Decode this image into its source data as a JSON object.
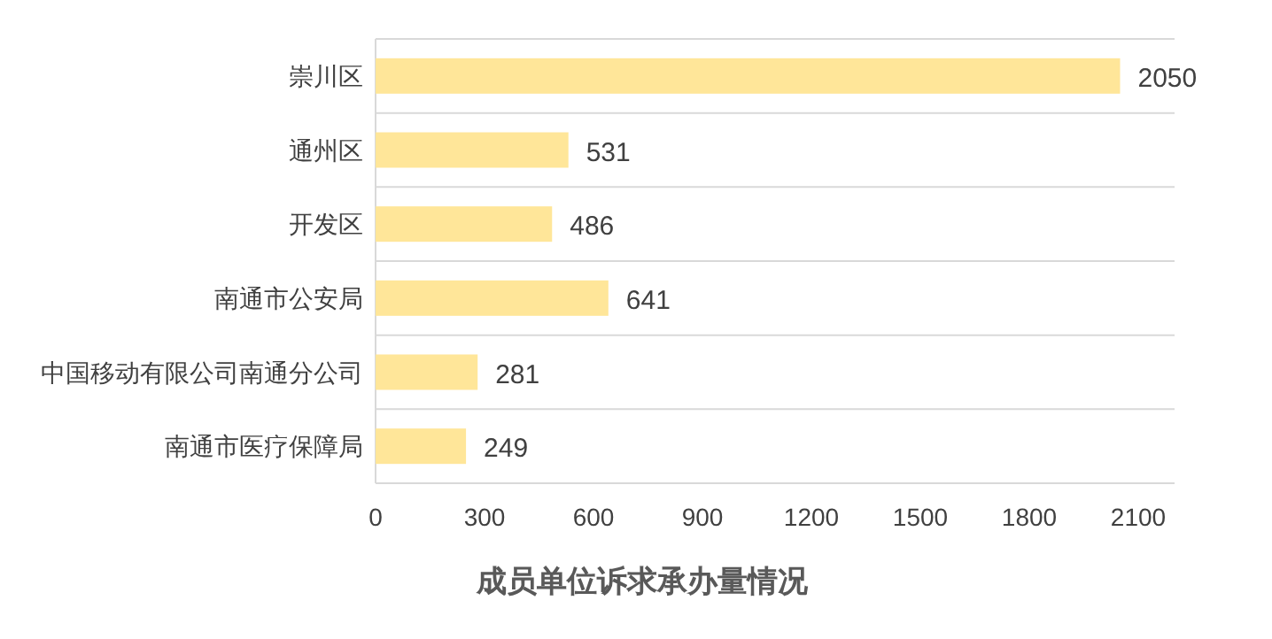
{
  "chart_data": {
    "type": "bar",
    "orientation": "horizontal",
    "title": "成员单位诉求承办量情况",
    "categories": [
      "崇川区",
      "通州区",
      "开发区",
      "南通市公安局",
      "中国移动有限公司南通分公司",
      "南通市医疗保障局"
    ],
    "values": [
      2050,
      531,
      486,
      641,
      281,
      249
    ],
    "color": "#ffe699",
    "data_labels": true,
    "xlim": [
      0,
      2200
    ],
    "xticks": [
      0,
      300,
      600,
      900,
      1200,
      1500,
      1800,
      2100
    ],
    "grid": "y"
  }
}
